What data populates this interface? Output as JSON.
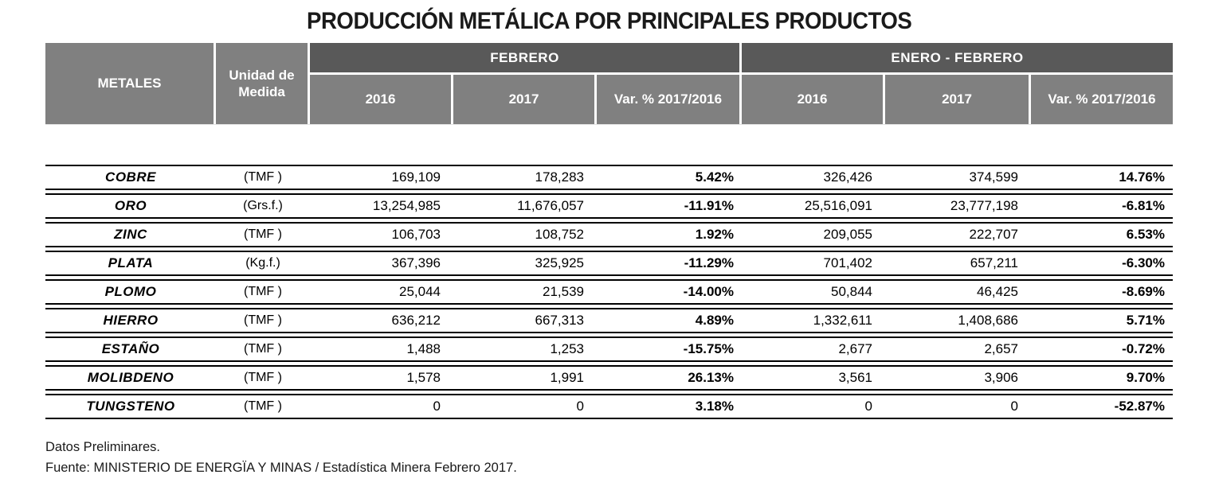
{
  "page": {
    "title": "PRODUCCIÓN METÁLICA POR PRINCIPALES PRODUCTOS",
    "notes": [
      "Datos Preliminares.",
      "Fuente: MINISTERIO DE ENERGÏA Y MINAS / Estadística Minera Febrero 2017."
    ]
  },
  "colors": {
    "group_header_bg": "#595959",
    "sub_header_bg": "#808080",
    "header_text": "#ffffff",
    "row_border": "#000000"
  },
  "table": {
    "header": {
      "metals": "METALES",
      "unit": "Unidad de Medida"
    },
    "groups": [
      {
        "label": "FEBRERO",
        "cols": [
          "2016",
          "2017",
          "Var. % 2017/2016"
        ]
      },
      {
        "label": "ENERO - FEBRERO",
        "cols": [
          "2016",
          "2017",
          "Var. % 2017/2016"
        ]
      }
    ],
    "rows": [
      {
        "metal": "COBRE",
        "unit": "(TMF )",
        "values": [
          "169,109",
          "178,283",
          "5.42%",
          "326,426",
          "374,599",
          "14.76%"
        ]
      },
      {
        "metal": "ORO",
        "unit": "(Grs.f.)",
        "values": [
          "13,254,985",
          "11,676,057",
          "-11.91%",
          "25,516,091",
          "23,777,198",
          "-6.81%"
        ]
      },
      {
        "metal": "ZINC",
        "unit": "(TMF )",
        "values": [
          "106,703",
          "108,752",
          "1.92%",
          "209,055",
          "222,707",
          "6.53%"
        ]
      },
      {
        "metal": "PLATA",
        "unit": "(Kg.f.)",
        "values": [
          "367,396",
          "325,925",
          "-11.29%",
          "701,402",
          "657,211",
          "-6.30%"
        ]
      },
      {
        "metal": "PLOMO",
        "unit": "(TMF )",
        "values": [
          "25,044",
          "21,539",
          "-14.00%",
          "50,844",
          "46,425",
          "-8.69%"
        ]
      },
      {
        "metal": "HIERRO",
        "unit": "(TMF )",
        "values": [
          "636,212",
          "667,313",
          "4.89%",
          "1,332,611",
          "1,408,686",
          "5.71%"
        ]
      },
      {
        "metal": "ESTAÑO",
        "unit": "(TMF )",
        "values": [
          "1,488",
          "1,253",
          "-15.75%",
          "2,677",
          "2,657",
          "-0.72%"
        ]
      },
      {
        "metal": "MOLIBDENO",
        "unit": "(TMF )",
        "values": [
          "1,578",
          "1,991",
          "26.13%",
          "3,561",
          "3,906",
          "9.70%"
        ]
      },
      {
        "metal": "TUNGSTENO",
        "unit": "(TMF )",
        "values": [
          "0",
          "0",
          "3.18%",
          "0",
          "0",
          "-52.87%"
        ]
      }
    ]
  }
}
